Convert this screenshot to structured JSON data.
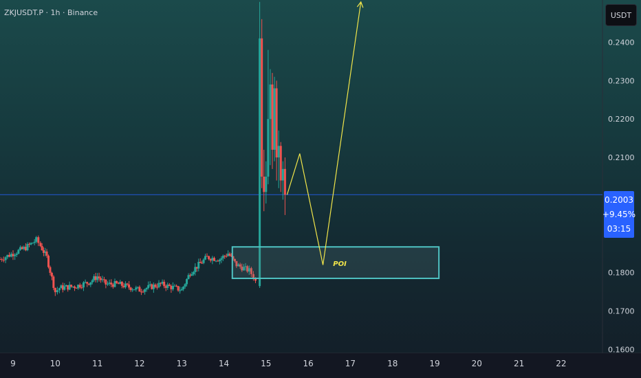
{
  "header": {
    "symbol": "ZKJUSDT.P · 1h · Binance"
  },
  "currency_button": {
    "label": "USDT"
  },
  "price_badge": {
    "price": "0.2003",
    "change": "+9.45%",
    "countdown": "03:15"
  },
  "annotation": {
    "label": "POI"
  },
  "colors": {
    "up": "#26a69a",
    "down": "#ef5350",
    "box_border": "#4fc3c3",
    "projection": "#f2e64a",
    "price_line": "#2962ff"
  },
  "chart_data": {
    "type": "candlestick",
    "title": "ZKJUSDT.P · 1h · Binance",
    "ylabel": "USDT",
    "ylim": [
      0.159,
      0.251
    ],
    "y_ticks": [
      0.24,
      0.23,
      0.22,
      0.21,
      0.2,
      0.19,
      0.18,
      0.17,
      0.16
    ],
    "y_tick_labels": [
      "0.2400",
      "0.2300",
      "0.2200",
      "0.2100",
      "0.2000",
      "0.1900",
      "0.1800",
      "0.1700",
      "0.1600"
    ],
    "x_ticks": [
      9,
      10,
      11,
      12,
      13,
      14,
      15,
      16,
      17,
      18,
      19,
      20,
      21,
      22
    ],
    "x_tick_labels": [
      "9",
      "10",
      "11",
      "12",
      "13",
      "14",
      "15",
      "16",
      "17",
      "18",
      "19",
      "20",
      "21",
      "22"
    ],
    "xlim": [
      8.69,
      22.98
    ],
    "last_price": 0.2003,
    "grid": false,
    "anchors": [
      [
        8.69,
        0.1835
      ],
      [
        9.0,
        0.185
      ],
      [
        9.3,
        0.1865
      ],
      [
        9.55,
        0.1885
      ],
      [
        9.65,
        0.187
      ],
      [
        9.8,
        0.184
      ],
      [
        10.0,
        0.175
      ],
      [
        10.1,
        0.176
      ],
      [
        10.5,
        0.1765
      ],
      [
        10.8,
        0.1775
      ],
      [
        11.0,
        0.179
      ],
      [
        11.2,
        0.177
      ],
      [
        11.5,
        0.177
      ],
      [
        12.0,
        0.1755
      ],
      [
        12.5,
        0.177
      ],
      [
        13.0,
        0.1755
      ],
      [
        13.2,
        0.18
      ],
      [
        13.6,
        0.184
      ],
      [
        13.9,
        0.1835
      ],
      [
        14.1,
        0.185
      ],
      [
        14.3,
        0.182
      ],
      [
        14.6,
        0.1805
      ],
      [
        14.7,
        0.179
      ],
      [
        14.8,
        0.1765
      ]
    ],
    "spike": [
      {
        "x": 14.85,
        "o": 0.1765,
        "h": 0.2505,
        "l": 0.176,
        "c": 0.241
      },
      {
        "x": 14.9,
        "o": 0.241,
        "h": 0.246,
        "l": 0.202,
        "c": 0.205
      },
      {
        "x": 14.95,
        "o": 0.205,
        "h": 0.212,
        "l": 0.196,
        "c": 0.201
      },
      {
        "x": 15.0,
        "o": 0.201,
        "h": 0.209,
        "l": 0.198,
        "c": 0.205
      },
      {
        "x": 15.05,
        "o": 0.205,
        "h": 0.238,
        "l": 0.203,
        "c": 0.22
      },
      {
        "x": 15.1,
        "o": 0.22,
        "h": 0.233,
        "l": 0.208,
        "c": 0.229
      },
      {
        "x": 15.15,
        "o": 0.229,
        "h": 0.232,
        "l": 0.207,
        "c": 0.212
      },
      {
        "x": 15.2,
        "o": 0.212,
        "h": 0.231,
        "l": 0.209,
        "c": 0.228
      },
      {
        "x": 15.25,
        "o": 0.228,
        "h": 0.23,
        "l": 0.204,
        "c": 0.21
      },
      {
        "x": 15.3,
        "o": 0.21,
        "h": 0.217,
        "l": 0.202,
        "c": 0.213
      },
      {
        "x": 15.35,
        "o": 0.213,
        "h": 0.214,
        "l": 0.201,
        "c": 0.204
      },
      {
        "x": 15.4,
        "o": 0.204,
        "h": 0.209,
        "l": 0.199,
        "c": 0.207
      },
      {
        "x": 15.45,
        "o": 0.207,
        "h": 0.21,
        "l": 0.195,
        "c": 0.2003
      }
    ],
    "poi_box": {
      "x0": 14.2,
      "x1": 19.1,
      "y0": 0.1867,
      "y1": 0.1785
    },
    "projection": [
      [
        15.5,
        0.2003
      ],
      [
        15.8,
        0.211
      ],
      [
        16.35,
        0.182
      ],
      [
        17.25,
        0.2505
      ]
    ]
  }
}
